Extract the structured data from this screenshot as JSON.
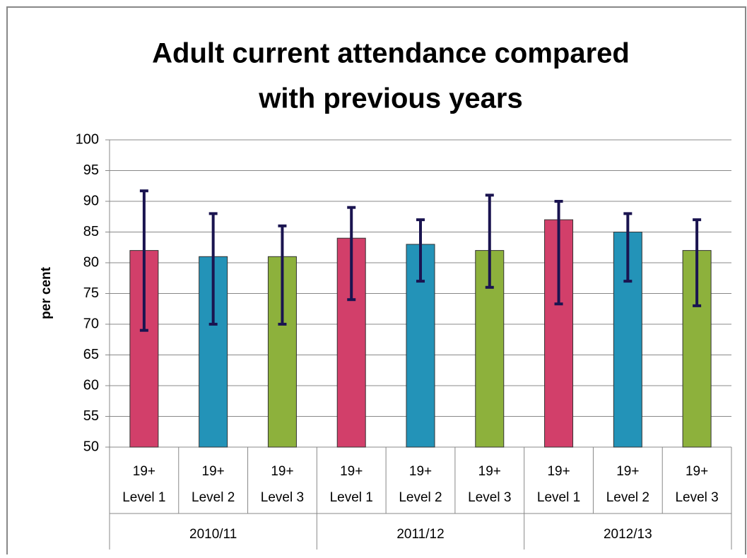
{
  "chart_data": {
    "type": "bar",
    "title": [
      "Adult current attendance compared",
      "with previous years"
    ],
    "y_label": "per cent",
    "categories": [
      [
        "19+",
        "Level 1"
      ],
      [
        "19+",
        "Level 2"
      ],
      [
        "19+",
        "Level 3"
      ],
      [
        "19+",
        "Level 1"
      ],
      [
        "19+",
        "Level 2"
      ],
      [
        "19+",
        "Level 3"
      ],
      [
        "19+",
        "Level 1"
      ],
      [
        "19+",
        "Level 2"
      ],
      [
        "19+",
        "Level 3"
      ]
    ],
    "groups": [
      "2010/11",
      "2011/12",
      "2012/13"
    ],
    "values": [
      82,
      81,
      81,
      84,
      83,
      82,
      87,
      85,
      82
    ],
    "error_plus": [
      9.7,
      7,
      5,
      5,
      4,
      9,
      3,
      3,
      5
    ],
    "error_minus": [
      13,
      11,
      11,
      10,
      6,
      6,
      13.7,
      8,
      9
    ],
    "colors": [
      "#d23f6a",
      "#2393b8",
      "#8db13c",
      "#d23f6a",
      "#2393b8",
      "#8db13c",
      "#d23f6a",
      "#2393b8",
      "#8db13c"
    ],
    "error_color": "#1a1450",
    "ylim": [
      50,
      100
    ],
    "yticks": [
      50,
      55,
      60,
      65,
      70,
      75,
      80,
      85,
      90,
      95,
      100
    ],
    "grid": true
  }
}
